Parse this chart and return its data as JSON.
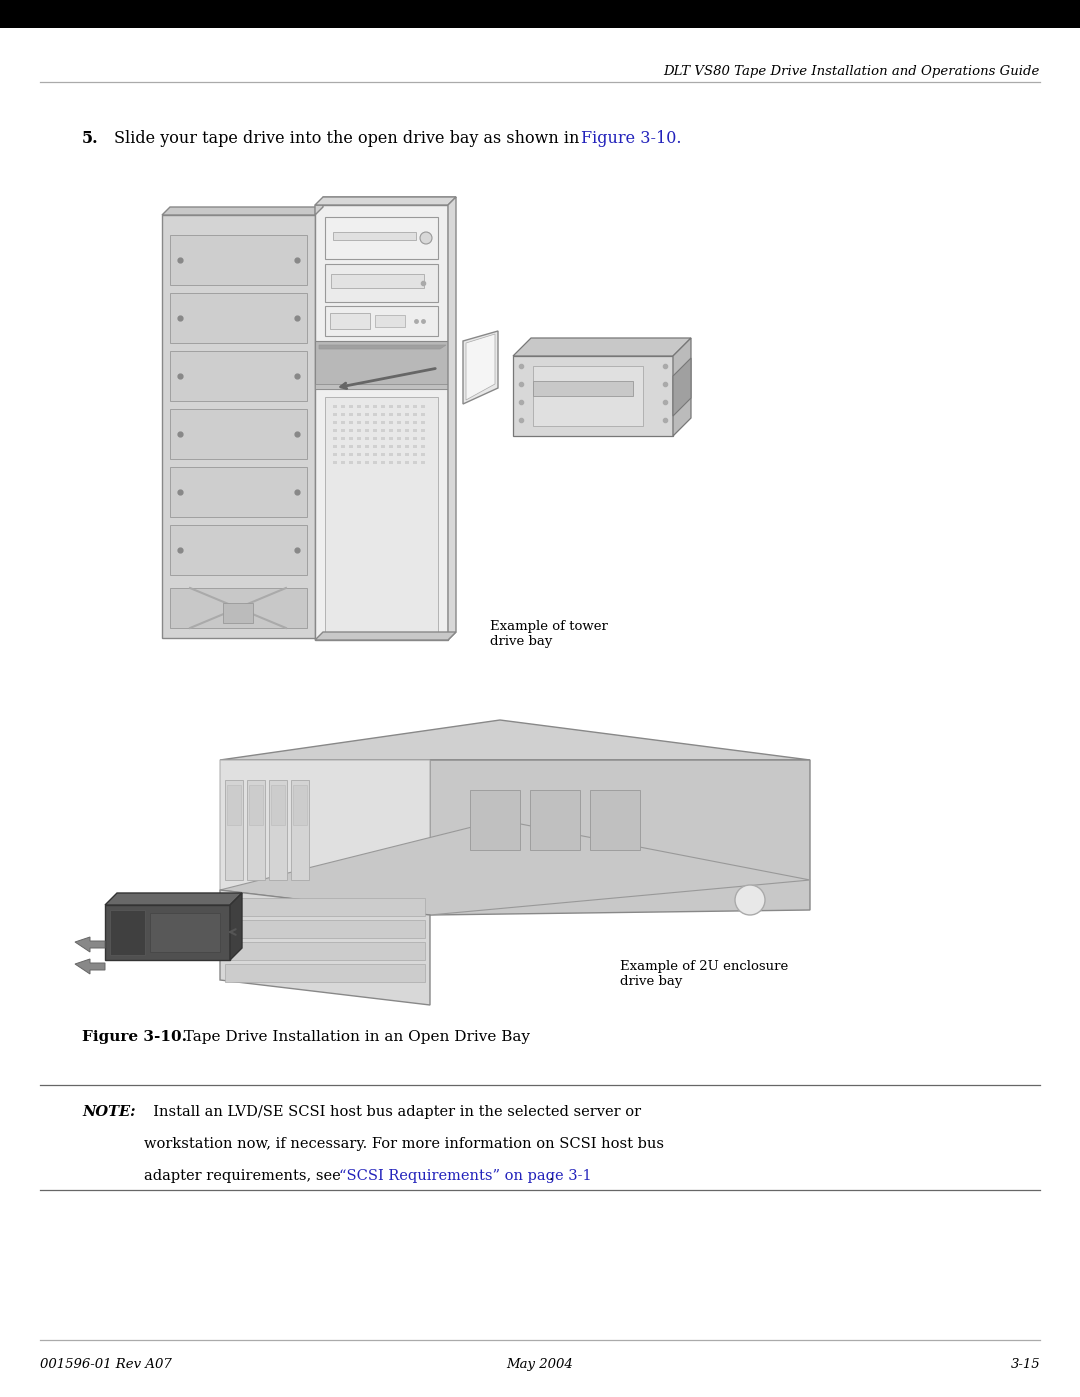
{
  "header_bar_color": "#000000",
  "header_text": "DLT VS80 Tape Drive Installation and Operations Guide",
  "header_text_color": "#000000",
  "header_text_size": 9.5,
  "separator_color": "#aaaaaa",
  "step_link_color": "#2222bb",
  "step_text_size": 11.5,
  "tower_label": "Example of tower\ndrive bay",
  "enclosure_label": "Example of 2U enclosure\ndrive bay",
  "figure_label_bold": "Figure 3-10.",
  "figure_label_rest": "  Tape Drive Installation in an Open Drive Bay",
  "note_label": "NOTE:",
  "note_text_line1": "  Install an LVD/SE SCSI host bus adapter in the selected server or",
  "note_text_line2": "workstation now, if necessary. For more information on SCSI host bus",
  "note_text_line3": "adapter requirements, see “SCSI Requirements” on page 3-1.",
  "note_link_text": "“SCSI Requirements” on page 3-1",
  "note_link_color": "#2222bb",
  "note_text_size": 10.5,
  "footer_left": "001596-01 Rev A07",
  "footer_center": "May 2004",
  "footer_right": "3-15",
  "footer_text_size": 9.5,
  "bg_color": "#ffffff",
  "tower_gray_light": "#e8e8e8",
  "tower_gray_mid": "#d8d8d8",
  "tower_gray_dark": "#c8c8c8",
  "tower_gray_darker": "#b8b8b8",
  "tower_edge_color": "#888888",
  "enc_gray_light": "#d8d8d8",
  "enc_gray_mid": "#cccccc",
  "enc_gray_dark": "#b8b8b8",
  "enc_gray_darker": "#aaaaaa"
}
